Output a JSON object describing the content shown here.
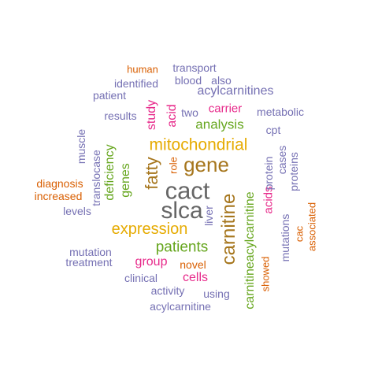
{
  "colors": {
    "purple": "#7570b3",
    "orange": "#d95f02",
    "magenta": "#e7298a",
    "green": "#66a61e",
    "gold": "#e6ab02",
    "brown": "#a6761d",
    "gray": "#666666"
  },
  "words": [
    {
      "text": "cact",
      "color": "gray",
      "orientation": "horizontal"
    },
    {
      "text": "slca",
      "color": "gray",
      "orientation": "horizontal"
    },
    {
      "text": "carnitine",
      "color": "brown",
      "orientation": "vertical"
    },
    {
      "text": "gene",
      "color": "brown",
      "orientation": "horizontal"
    },
    {
      "text": "fatty",
      "color": "brown",
      "orientation": "vertical"
    },
    {
      "text": "mitochondrial",
      "color": "gold",
      "orientation": "horizontal"
    },
    {
      "text": "expression",
      "color": "gold",
      "orientation": "horizontal"
    },
    {
      "text": "carnitineacylcarnitine",
      "color": "green",
      "orientation": "vertical"
    },
    {
      "text": "patients",
      "color": "green",
      "orientation": "horizontal"
    },
    {
      "text": "analysis",
      "color": "green",
      "orientation": "horizontal"
    },
    {
      "text": "deficiency",
      "color": "green",
      "orientation": "vertical"
    },
    {
      "text": "genes",
      "color": "green",
      "orientation": "vertical"
    },
    {
      "text": "acid",
      "color": "magenta",
      "orientation": "vertical"
    },
    {
      "text": "study",
      "color": "magenta",
      "orientation": "vertical"
    },
    {
      "text": "carrier",
      "color": "magenta",
      "orientation": "horizontal"
    },
    {
      "text": "acids",
      "color": "magenta",
      "orientation": "vertical"
    },
    {
      "text": "group",
      "color": "magenta",
      "orientation": "horizontal"
    },
    {
      "text": "cells",
      "color": "magenta",
      "orientation": "horizontal"
    },
    {
      "text": "acylcarnitines",
      "color": "purple",
      "orientation": "horizontal"
    },
    {
      "text": "protein",
      "color": "purple",
      "orientation": "vertical"
    },
    {
      "text": "translocase",
      "color": "purple",
      "orientation": "vertical"
    },
    {
      "text": "results",
      "color": "purple",
      "orientation": "horizontal"
    },
    {
      "text": "metabolic",
      "color": "purple",
      "orientation": "horizontal"
    },
    {
      "text": "mutations",
      "color": "purple",
      "orientation": "vertical"
    },
    {
      "text": "mutation",
      "color": "purple",
      "orientation": "horizontal"
    },
    {
      "text": "transport",
      "color": "purple",
      "orientation": "horizontal"
    },
    {
      "text": "identified",
      "color": "purple",
      "orientation": "horizontal"
    },
    {
      "text": "patient",
      "color": "purple",
      "orientation": "horizontal"
    },
    {
      "text": "blood",
      "color": "purple",
      "orientation": "horizontal"
    },
    {
      "text": "also",
      "color": "purple",
      "orientation": "horizontal"
    },
    {
      "text": "two",
      "color": "purple",
      "orientation": "horizontal"
    },
    {
      "text": "cpt",
      "color": "purple",
      "orientation": "horizontal"
    },
    {
      "text": "muscle",
      "color": "purple",
      "orientation": "vertical"
    },
    {
      "text": "cases",
      "color": "purple",
      "orientation": "vertical"
    },
    {
      "text": "proteins",
      "color": "purple",
      "orientation": "vertical"
    },
    {
      "text": "liver",
      "color": "purple",
      "orientation": "vertical"
    },
    {
      "text": "levels",
      "color": "purple",
      "orientation": "horizontal"
    },
    {
      "text": "treatment",
      "color": "purple",
      "orientation": "horizontal"
    },
    {
      "text": "clinical",
      "color": "purple",
      "orientation": "horizontal"
    },
    {
      "text": "activity",
      "color": "purple",
      "orientation": "horizontal"
    },
    {
      "text": "using",
      "color": "purple",
      "orientation": "horizontal"
    },
    {
      "text": "acylcarnitine",
      "color": "purple",
      "orientation": "horizontal"
    },
    {
      "text": "human",
      "color": "orange",
      "orientation": "horizontal"
    },
    {
      "text": "role",
      "color": "orange",
      "orientation": "vertical"
    },
    {
      "text": "diagnosis",
      "color": "orange",
      "orientation": "horizontal"
    },
    {
      "text": "increased",
      "color": "orange",
      "orientation": "horizontal"
    },
    {
      "text": "novel",
      "color": "orange",
      "orientation": "horizontal"
    },
    {
      "text": "showed",
      "color": "orange",
      "orientation": "vertical"
    },
    {
      "text": "cac",
      "color": "orange",
      "orientation": "vertical"
    },
    {
      "text": "associated",
      "color": "orange",
      "orientation": "vertical"
    }
  ]
}
